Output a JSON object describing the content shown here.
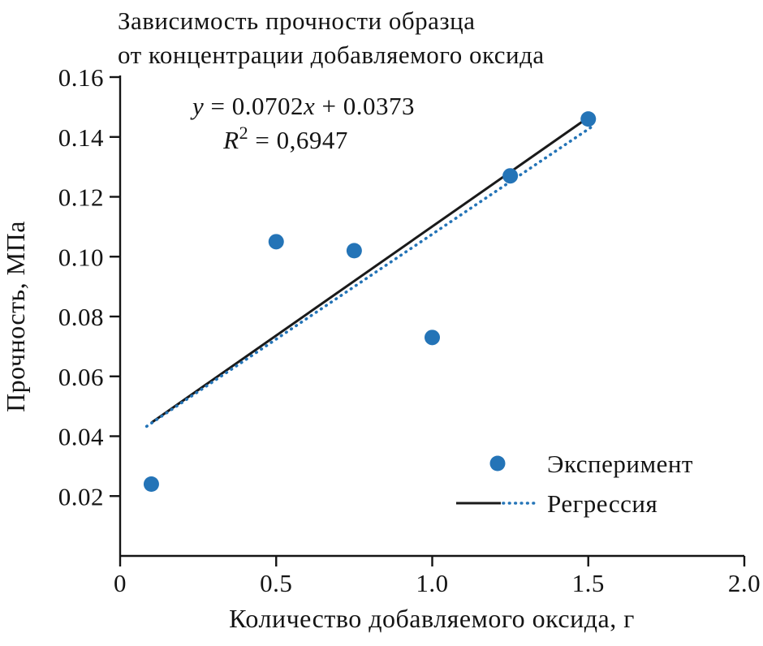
{
  "chart_data": {
    "type": "scatter",
    "title_lines": [
      "Зависимость прочности образца",
      "от концентрации добавляемого оксида"
    ],
    "xlabel": "Количество добавляемого оксида, г",
    "ylabel": "Прочность, МПа",
    "xlim": [
      0,
      2.0
    ],
    "ylim": [
      0,
      0.16
    ],
    "x_ticks": [
      0,
      0.5,
      1.0,
      1.5,
      2.0
    ],
    "x_tick_labels": [
      "0",
      "0.5",
      "1.0",
      "1.5",
      "2.0"
    ],
    "y_ticks": [
      0.02,
      0.04,
      0.06,
      0.08,
      0.1,
      0.12,
      0.14,
      0.16
    ],
    "y_tick_labels": [
      "0.02",
      "0.04",
      "0.06",
      "0.08",
      "0.10",
      "0.12",
      "0.14",
      "0.16"
    ],
    "series": [
      {
        "name": "Эксперимент",
        "type": "scatter",
        "color": "#2474B7",
        "points": [
          [
            0.1,
            0.024
          ],
          [
            0.5,
            0.105
          ],
          [
            0.75,
            0.102
          ],
          [
            1.0,
            0.073
          ],
          [
            1.25,
            0.127
          ],
          [
            1.5,
            0.146
          ]
        ]
      },
      {
        "name": "Регрессия",
        "type": "line",
        "solid_color": "#1a1a1a",
        "dotted_color": "#2474B7",
        "solid_line": {
          "x1": 0.1,
          "y1": 0.0445,
          "x2": 1.5,
          "y2": 0.1465
        },
        "dotted_line": {
          "x1": 0.085,
          "y1": 0.0433,
          "x2": 1.51,
          "y2": 0.1433
        }
      }
    ],
    "regression": {
      "slope": 0.0702,
      "intercept": 0.0373,
      "r_squared_text": "0,6947"
    },
    "annotation": {
      "eq_var_y": "y",
      "eq_mid": " = 0.0702",
      "eq_var_x": "x",
      "eq_tail": " + 0.0373",
      "r2_var": "R",
      "r2_sup": "2",
      "r2_rest": " = 0,6947"
    },
    "legend": {
      "experiment_label": "Эксперимент",
      "regression_label": "Регрессия"
    }
  }
}
